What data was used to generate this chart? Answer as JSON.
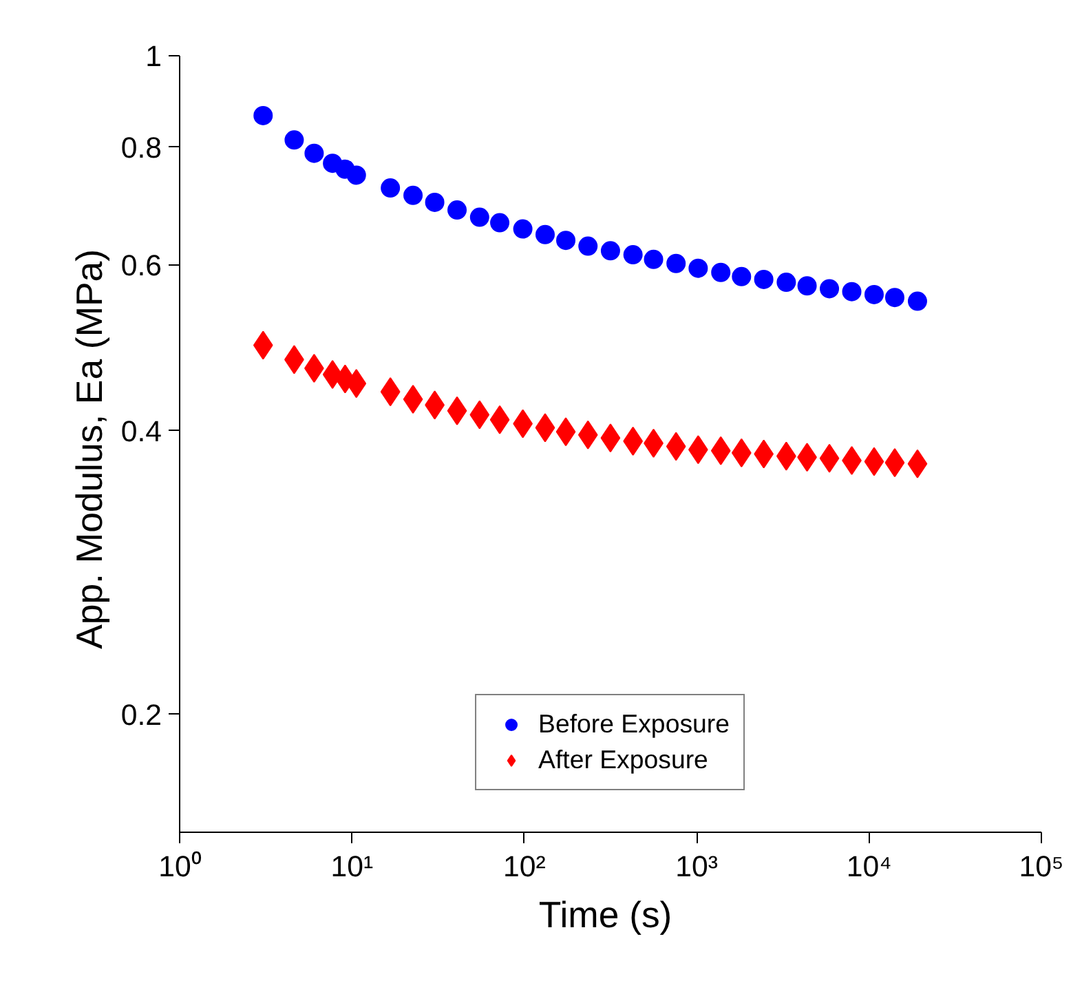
{
  "chart_data": {
    "type": "scatter",
    "xlabel": "Time  (s)",
    "ylabel": "App. Modulus, Ea  (MPa)",
    "log": "xy",
    "xlim": [
      1,
      100000
    ],
    "ylim": [
      0.15,
      1
    ],
    "xticks": [
      {
        "value": 1,
        "label": "10⁰"
      },
      {
        "value": 10,
        "label": "10¹"
      },
      {
        "value": 100,
        "label": "10²"
      },
      {
        "value": 1000,
        "label": "10³"
      },
      {
        "value": 10000,
        "label": "10⁴"
      },
      {
        "value": 100000,
        "label": "10⁵"
      }
    ],
    "yticks": [
      0.2,
      0.4,
      0.6,
      0.8,
      1
    ],
    "grid": false,
    "legend": "bottom",
    "x": [
      3.05,
      4.62,
      6.03,
      7.71,
      9.12,
      10.6,
      16.7,
      22.6,
      30.2,
      40.7,
      55,
      72,
      98,
      132,
      174,
      234,
      316,
      427,
      562,
      759,
      1020,
      1380,
      1820,
      2450,
      3310,
      4370,
      5890,
      7940,
      10700,
      14100,
      19100
    ],
    "series": [
      {
        "name": "Before Exposure",
        "color": "#0000ff",
        "marker": "circle",
        "values": [
          0.864,
          0.814,
          0.788,
          0.769,
          0.758,
          0.747,
          0.724,
          0.711,
          0.699,
          0.686,
          0.674,
          0.665,
          0.655,
          0.646,
          0.637,
          0.628,
          0.621,
          0.615,
          0.608,
          0.602,
          0.595,
          0.589,
          0.583,
          0.579,
          0.575,
          0.57,
          0.566,
          0.562,
          0.558,
          0.554,
          0.549
        ]
      },
      {
        "name": "After Exposure",
        "color": "#ff0000",
        "marker": "diamond",
        "values": [
          0.493,
          0.476,
          0.466,
          0.459,
          0.454,
          0.449,
          0.44,
          0.432,
          0.426,
          0.42,
          0.416,
          0.411,
          0.407,
          0.403,
          0.399,
          0.396,
          0.393,
          0.39,
          0.388,
          0.385,
          0.382,
          0.381,
          0.379,
          0.378,
          0.376,
          0.375,
          0.374,
          0.372,
          0.371,
          0.37,
          0.369
        ]
      }
    ]
  }
}
